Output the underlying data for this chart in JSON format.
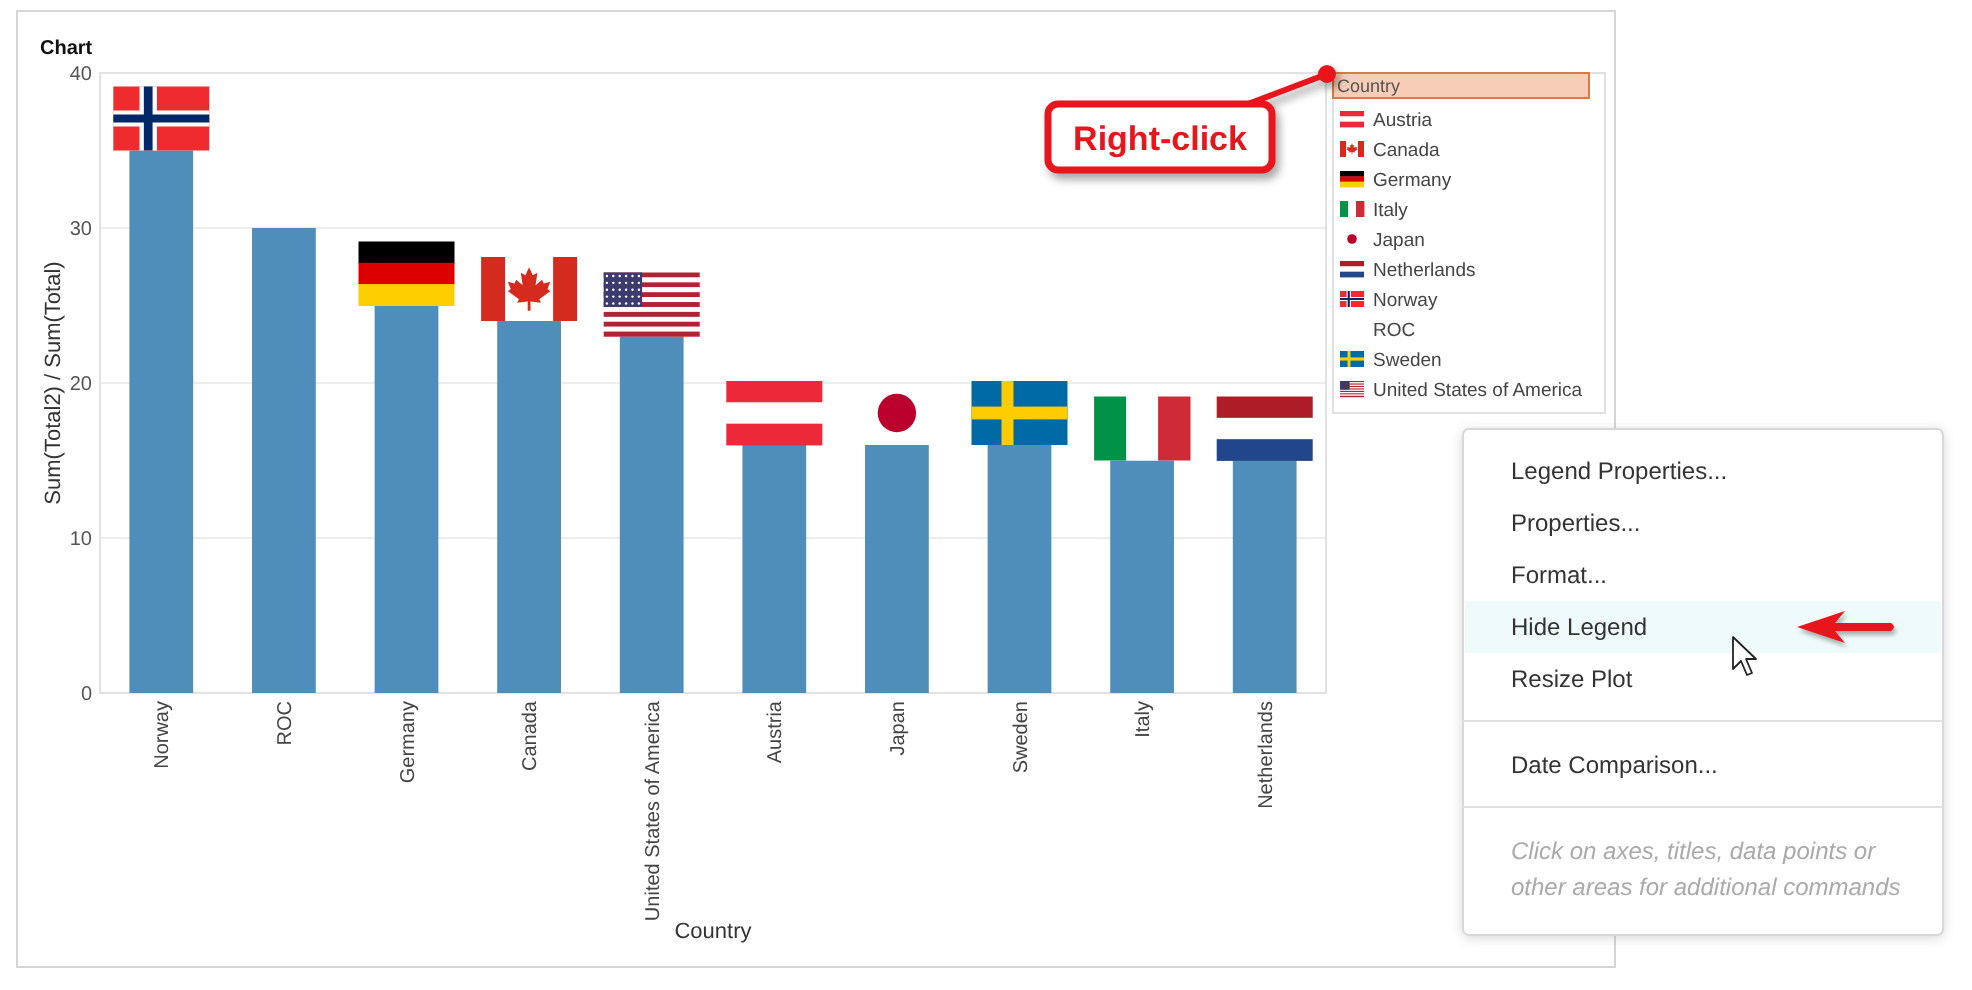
{
  "chart_data": {
    "type": "bar",
    "title": "Chart",
    "xlabel": "Country",
    "ylabel": "Sum(Total2) / Sum(Total)",
    "legend_title": "Country",
    "categories": [
      "Norway",
      "ROC",
      "Germany",
      "Canada",
      "United States of America",
      "Austria",
      "Japan",
      "Sweden",
      "Italy",
      "Netherlands"
    ],
    "values": [
      35,
      30,
      25,
      24,
      23,
      16,
      16,
      16,
      15,
      15
    ],
    "color": "#4f8dbb",
    "ylim": [
      0,
      40
    ],
    "yticks": [
      0,
      10,
      20,
      30,
      40
    ],
    "grid": "y",
    "annotations": [
      "Right-click",
      "Austria",
      "Canada",
      "Germany",
      "Italy",
      "Japan",
      "Netherlands",
      "Norway",
      "ROC",
      "Sweden",
      "United States of America",
      "Legend Properties...",
      "Properties...",
      "Format...",
      "Hide Legend",
      "Resize Plot",
      "Date Comparison...",
      "Click on axes, titles, data points or other areas for additional commands"
    ]
  }
}
